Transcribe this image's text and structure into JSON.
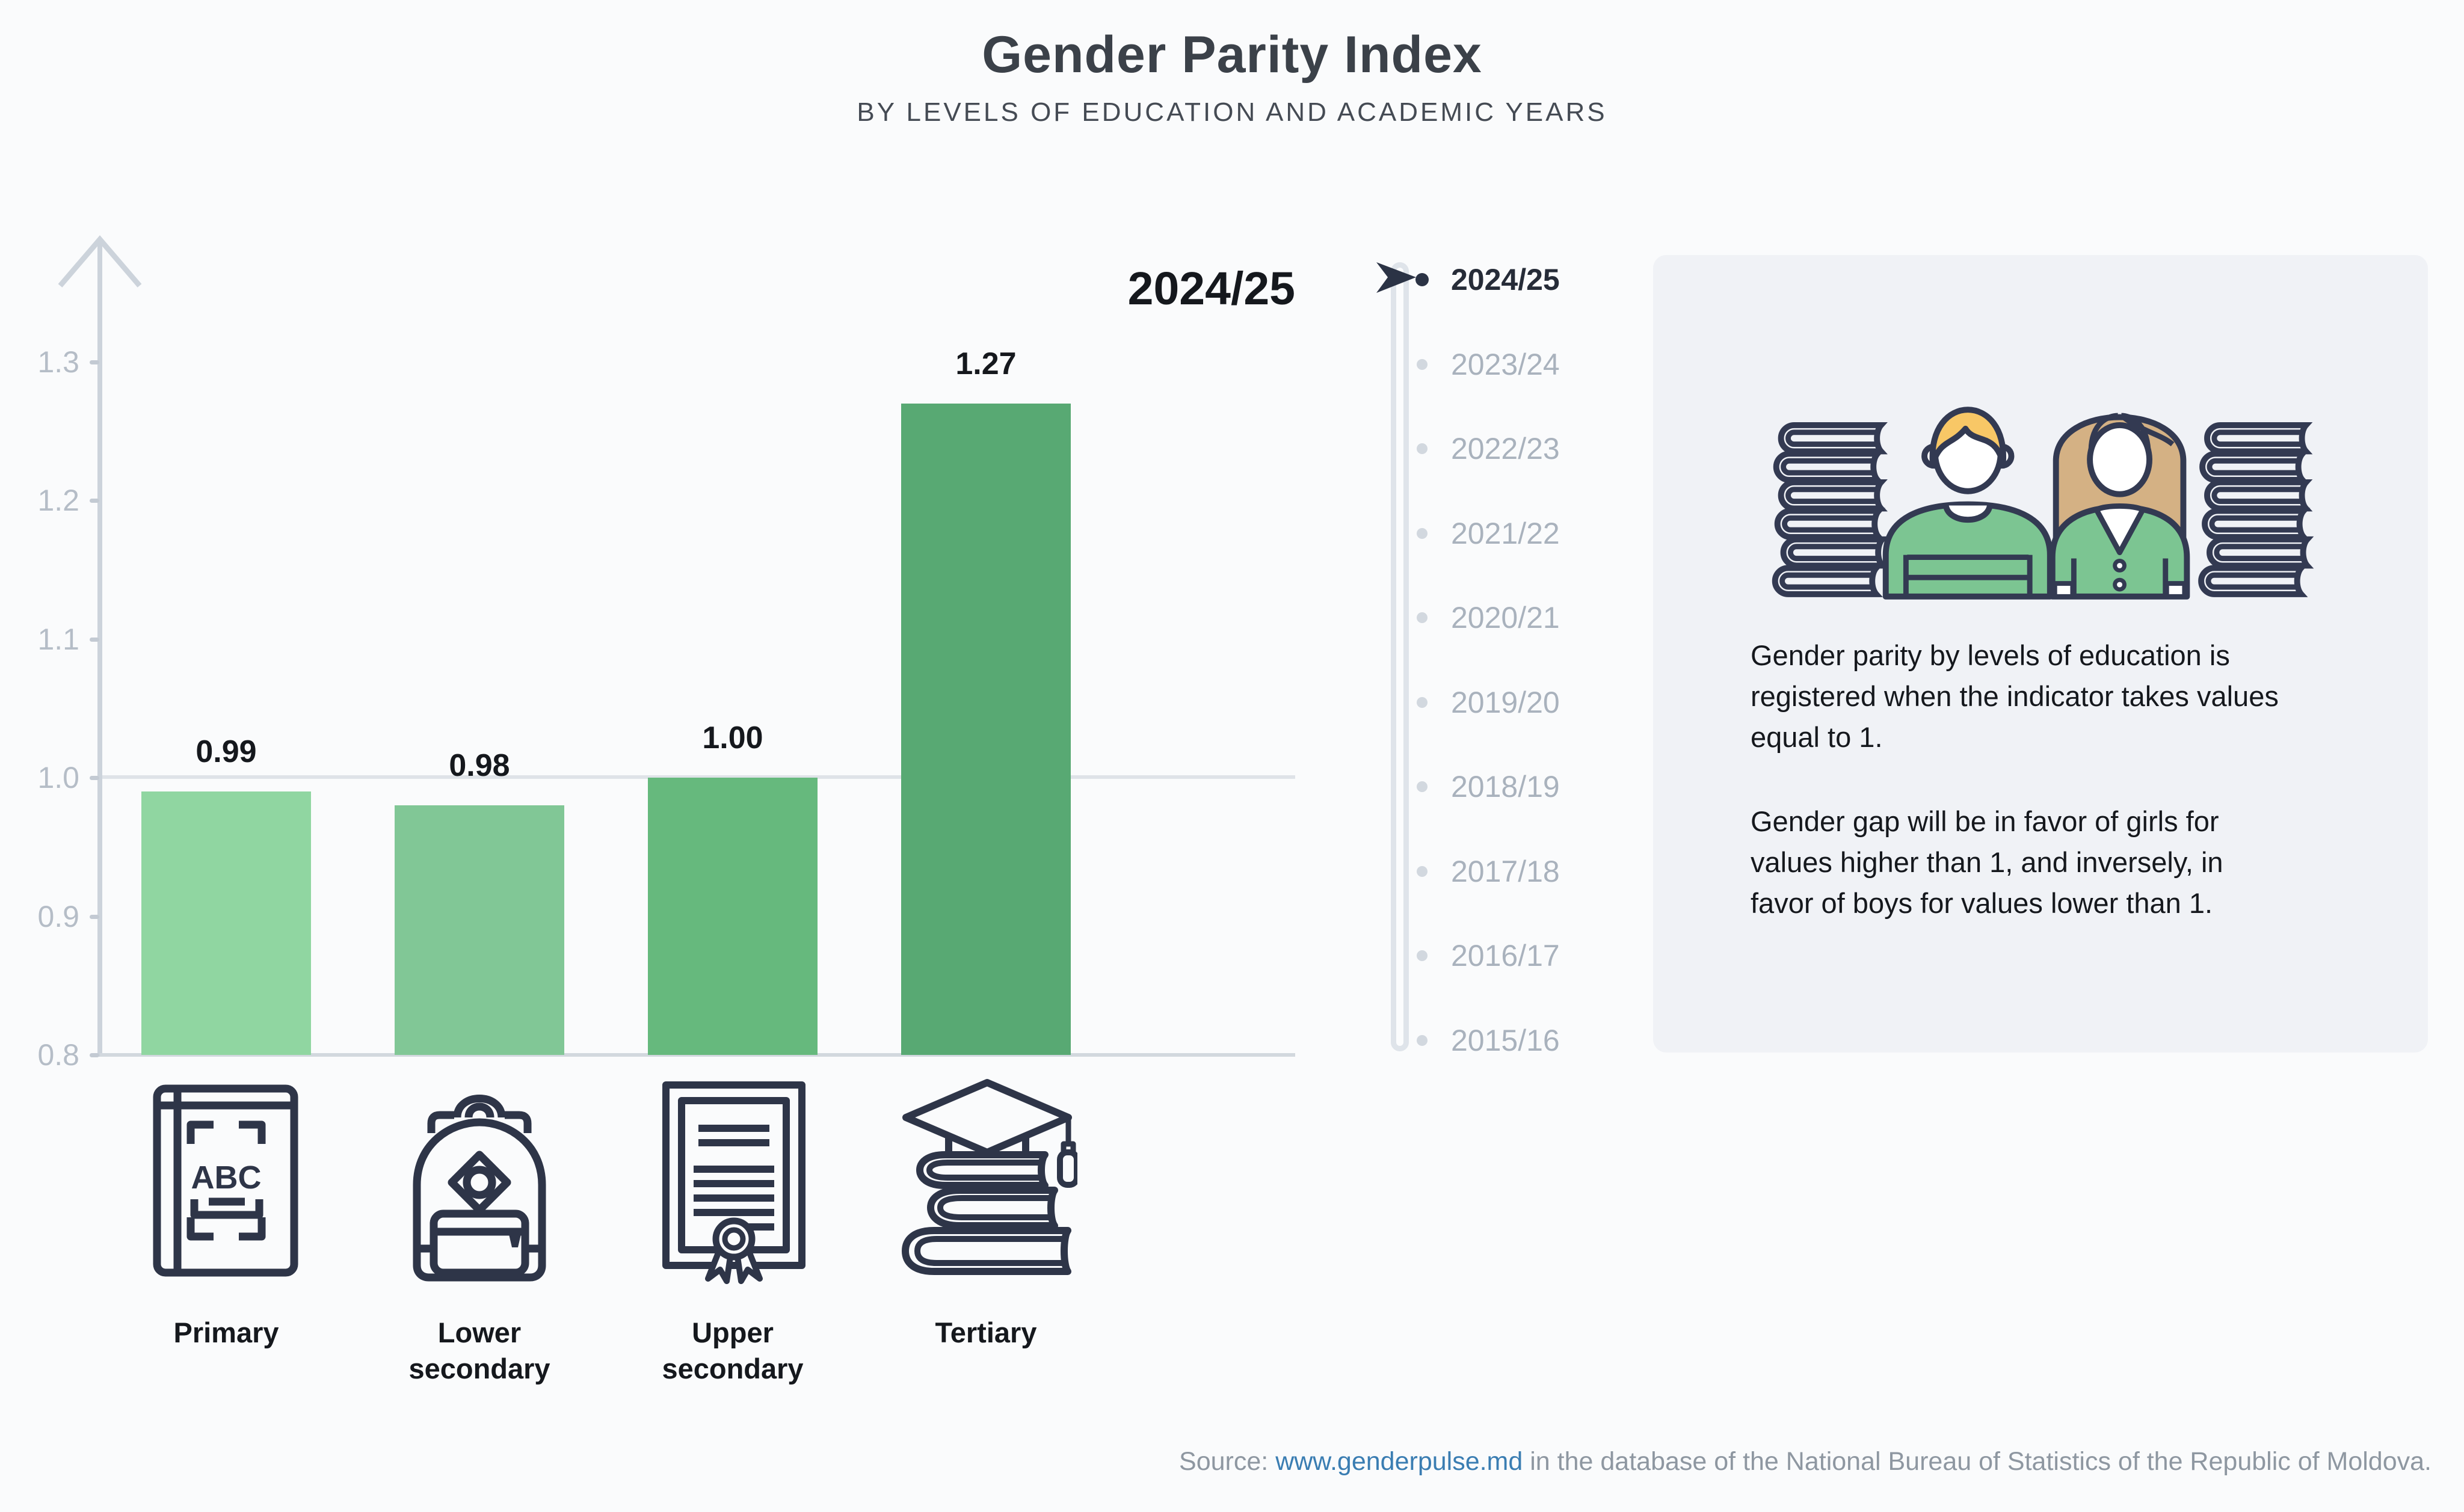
{
  "title": "Gender Parity Index",
  "subtitle": "BY LEVELS OF EDUCATION AND ACADEMIC YEARS",
  "chart_data": {
    "type": "bar",
    "title": "Gender Parity Index",
    "subtitle": "By levels of education and academic years",
    "categories": [
      "Primary",
      "Lower secondary",
      "Upper secondary",
      "Tertiary"
    ],
    "values": [
      0.99,
      0.98,
      1.0,
      1.27
    ],
    "value_labels": [
      "0.99",
      "0.98",
      "1.00",
      "1.27"
    ],
    "selected_year": "2024/25",
    "yticks": [
      "1.3",
      "1.2",
      "1.1",
      "1.0",
      "0.9",
      "0.8"
    ],
    "ylim": [
      0.8,
      1.3
    ],
    "reference_line": 1.0,
    "grid": "reference line at 1.0 only",
    "legend_position": "none",
    "bar_colors": [
      "#90d6a1",
      "#81c796",
      "#66b97d",
      "#58a973"
    ]
  },
  "timeline": {
    "selected": "2024/25",
    "years": [
      "2024/25",
      "2023/24",
      "2022/23",
      "2021/22",
      "2020/21",
      "2019/20",
      "2018/19",
      "2017/18",
      "2016/17",
      "2015/16"
    ]
  },
  "category_labels": [
    "Primary",
    "Lower\nsecondary",
    "Upper\nsecondary",
    "Tertiary"
  ],
  "icons": {
    "primary_book_text": "ABC"
  },
  "info_panel": {
    "paragraph1": "Gender parity by levels of education is\nregistered when the indicator takes values\nequal to 1.",
    "paragraph2": "Gender gap will be in favor of girls for\nvalues higher than 1, and inversely, in\nfavor of boys for values lower than 1."
  },
  "source": {
    "prefix": "Source: ",
    "link": "www.genderpulse.md",
    "suffix": " in the database of the National Bureau of Statistics of the Republic of Moldova."
  },
  "colors": {
    "background": "#fafbfc",
    "panel": "#f0f2f6",
    "outline_navy": "#2e3548",
    "axis_gray": "#ccd3db",
    "tick_text": "#b5bdc7",
    "inactive_year": "#a9b2bd",
    "selected_year": "#262c38",
    "link_blue": "#3a7db2",
    "source_gray": "#8e97a1",
    "hair_blond": "#f8c766",
    "hair_tan": "#d4b184",
    "clothes_green": "#7cc592"
  }
}
